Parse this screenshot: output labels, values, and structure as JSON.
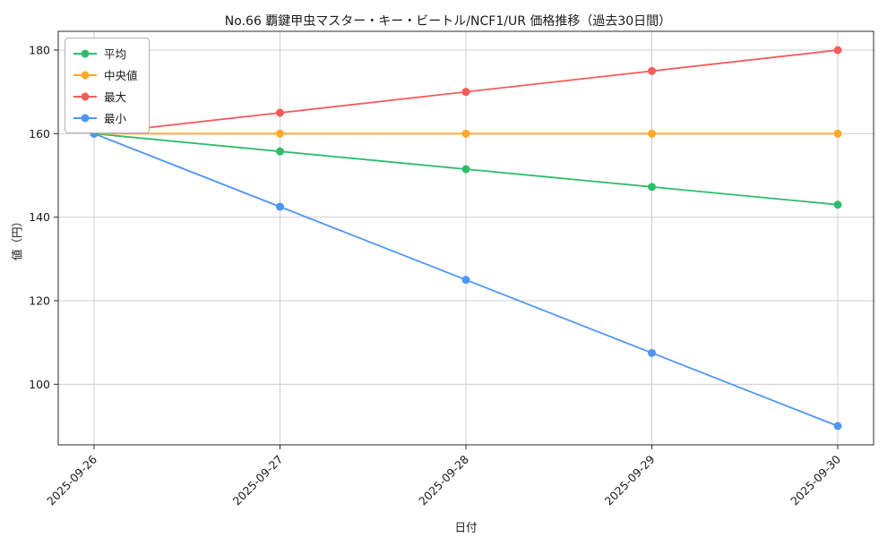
{
  "chart_data": {
    "type": "line",
    "title": "No.66 覇鍵甲虫マスター・キー・ビートル/NCF1/UR 価格推移（過去30日間）",
    "xlabel": "日付",
    "ylabel": "値（円）",
    "categories": [
      "2025-09-26",
      "2025-09-27",
      "2025-09-28",
      "2025-09-29",
      "2025-09-30"
    ],
    "series": [
      {
        "name": "平均",
        "color": "#2ebd6b",
        "values": [
          160,
          155.75,
          151.5,
          147.25,
          143
        ]
      },
      {
        "name": "中央値",
        "color": "#ffa726",
        "values": [
          160,
          160,
          160,
          160,
          160
        ]
      },
      {
        "name": "最大",
        "color": "#f45b5b",
        "values": [
          160,
          165,
          170,
          175,
          180
        ]
      },
      {
        "name": "最小",
        "color": "#4d96f5",
        "values": [
          160,
          142.5,
          125,
          107.5,
          90
        ]
      }
    ],
    "ylim": [
      85.5,
      184.5
    ],
    "yticks": [
      100,
      120,
      140,
      160,
      180
    ],
    "grid": true,
    "legend_position": "upper left",
    "colors": {
      "grid": "#cfcfcf",
      "spine": "#2b2b2b",
      "text": "#1a1a1a",
      "background": "#ffffff"
    }
  }
}
